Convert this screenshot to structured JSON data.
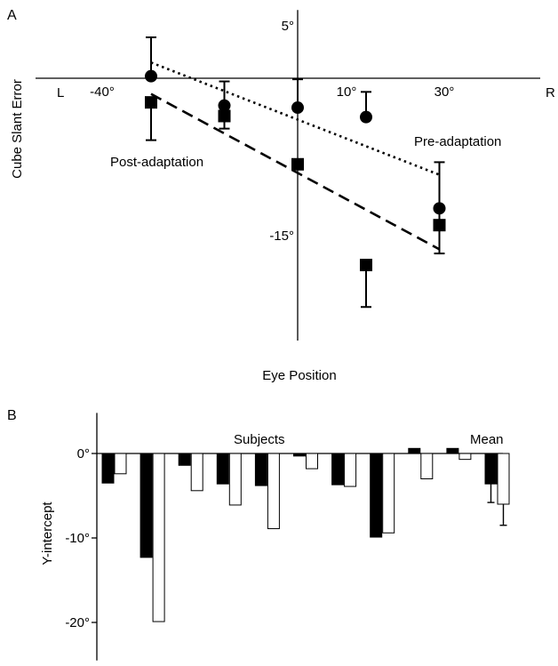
{
  "chart_data": [
    {
      "panel_label": "A",
      "type": "scatter",
      "xlabel": "Eye Position",
      "ylabel": "Cube Slant Error",
      "x_tick_labels": [
        {
          "x": -40,
          "label": "-40°"
        },
        {
          "x": 10,
          "label": "10°"
        },
        {
          "x": 30,
          "label": "30°"
        }
      ],
      "x_end_labels": {
        "left": "L",
        "right": "R"
      },
      "y_tick_labels": [
        {
          "y": 5,
          "label": "5°"
        },
        {
          "y": -15,
          "label": "-15°"
        }
      ],
      "xlim": [
        -40,
        40
      ],
      "ylim": [
        -25,
        6.5
      ],
      "series": [
        {
          "name": "Pre-adaptation",
          "marker": "circle",
          "line": "dotted",
          "points": [
            {
              "x": -30,
              "y": 0.2,
              "err_hi": 3.7,
              "err_lo": null
            },
            {
              "x": -15,
              "y": -2.6,
              "err_hi": 2.3,
              "err_lo": null
            },
            {
              "x": 0,
              "y": -2.8,
              "err_hi": 2.7,
              "err_lo": null
            },
            {
              "x": 14,
              "y": -3.7,
              "err_hi": 2.4,
              "err_lo": null
            },
            {
              "x": 29,
              "y": -12.4,
              "err_hi": null,
              "err_lo": null
            }
          ],
          "fit": {
            "x": [
              -30,
              29
            ],
            "y": [
              1.5,
              -9.2
            ]
          }
        },
        {
          "name": "Post-adaptation",
          "marker": "square",
          "line": "dashed",
          "points": [
            {
              "x": -30,
              "y": -2.3,
              "err_hi": null,
              "err_lo": 3.6
            },
            {
              "x": -15,
              "y": -3.6,
              "err_hi": null,
              "err_lo": 1.2
            },
            {
              "x": 0,
              "y": -8.2,
              "err_hi": null,
              "err_lo": null
            },
            {
              "x": 14,
              "y": -17.8,
              "err_hi": null,
              "err_lo": 4.0
            },
            {
              "x": 29,
              "y": -14.0,
              "err_hi": 6.0,
              "err_lo": 2.7
            }
          ],
          "fit": {
            "x": [
              -30,
              29
            ],
            "y": [
              -1.5,
              -16.3
            ]
          }
        }
      ],
      "annotations": [
        "Pre-adaptation",
        "Post-adaptation"
      ]
    },
    {
      "panel_label": "B",
      "type": "bar",
      "ylabel": "Y-intercept",
      "ylim": [
        -24.5,
        4.8
      ],
      "y_tick_labels": [
        {
          "y": 0,
          "label": "0°"
        },
        {
          "y": -10,
          "label": "-10°"
        },
        {
          "y": -20,
          "label": "-20°"
        }
      ],
      "annotations": [
        "Subjects",
        "Mean"
      ],
      "series_fills": [
        "#000000",
        "#ffffff"
      ],
      "groups": [
        {
          "values": [
            -3.5,
            -2.4
          ]
        },
        {
          "values": [
            -12.3,
            -19.9
          ]
        },
        {
          "values": [
            -1.4,
            -4.4
          ]
        },
        {
          "values": [
            -3.6,
            -6.1
          ]
        },
        {
          "values": [
            -3.8,
            -8.9
          ]
        },
        {
          "values": [
            -0.3,
            -1.8
          ]
        },
        {
          "values": [
            -3.7,
            -3.9
          ]
        },
        {
          "values": [
            -9.9,
            -9.4
          ]
        },
        {
          "values": [
            0.6,
            -3.0
          ]
        },
        {
          "values": [
            0.6,
            -0.7
          ]
        },
        {
          "values": [
            -3.6,
            -6.0
          ],
          "errors": [
            2.2,
            2.5
          ]
        }
      ]
    }
  ]
}
